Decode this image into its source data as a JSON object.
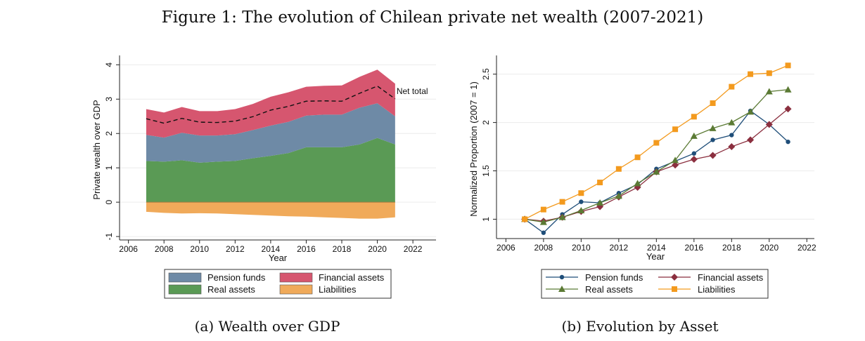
{
  "figure_title": "Figure 1: The evolution of Chilean private net wealth (2007-2021)",
  "chart_data": [
    {
      "type": "area",
      "caption": "(a) Wealth over GDP",
      "xlabel": "Year",
      "ylabel": "Private wealth over GDP",
      "xlim": [
        2005.5,
        2023.3
      ],
      "ylim": [
        -1.1,
        4.15
      ],
      "xticks": [
        "2006",
        "2008",
        "2010",
        "2012",
        "2014",
        "2016",
        "2018",
        "2020",
        "2022"
      ],
      "yticks": [
        "-1",
        "0",
        "1",
        "2",
        "3",
        "4"
      ],
      "grid": true,
      "x": [
        2007,
        2008,
        2009,
        2010,
        2011,
        2012,
        2013,
        2014,
        2015,
        2016,
        2017,
        2018,
        2019,
        2020,
        2021
      ],
      "series": [
        {
          "name": "Real assets",
          "color": "#5a9a55",
          "values": [
            1.2,
            1.18,
            1.22,
            1.15,
            1.18,
            1.2,
            1.28,
            1.35,
            1.43,
            1.6,
            1.6,
            1.6,
            1.68,
            1.87,
            1.68
          ]
        },
        {
          "name": "Pension funds",
          "color": "#6e8aa6",
          "values": [
            0.76,
            0.7,
            0.8,
            0.79,
            0.76,
            0.78,
            0.82,
            0.88,
            0.91,
            0.92,
            0.95,
            0.95,
            1.07,
            1.01,
            0.82
          ]
        },
        {
          "name": "Financial assets",
          "color": "#d6566f",
          "values": [
            0.75,
            0.73,
            0.75,
            0.71,
            0.71,
            0.73,
            0.76,
            0.84,
            0.86,
            0.84,
            0.84,
            0.85,
            0.9,
            0.98,
            0.95
          ]
        },
        {
          "name": "Liabilities",
          "color": "#f0aa5a",
          "values": [
            -0.28,
            -0.31,
            -0.33,
            -0.32,
            -0.33,
            -0.35,
            -0.37,
            -0.39,
            -0.41,
            -0.42,
            -0.44,
            -0.46,
            -0.48,
            -0.48,
            -0.44
          ]
        }
      ],
      "net_total": {
        "label": "Net total",
        "values": [
          2.43,
          2.3,
          2.44,
          2.33,
          2.32,
          2.36,
          2.49,
          2.68,
          2.79,
          2.94,
          2.95,
          2.94,
          3.17,
          3.38,
          3.01
        ]
      },
      "legend": {
        "placement": "bottom",
        "entries": [
          "Pension funds",
          "Financial assets",
          "Real assets",
          "Liabilities"
        ]
      }
    },
    {
      "type": "line",
      "caption": "(b) Evolution by Asset",
      "xlabel": "Year",
      "ylabel": "Normalized Proportion (2007 = 1)",
      "xlim": [
        2005.5,
        2022.4
      ],
      "ylim": [
        0.8,
        2.65
      ],
      "xticks": [
        "2006",
        "2008",
        "2010",
        "2012",
        "2014",
        "2016",
        "2018",
        "2020",
        "2022"
      ],
      "yticks": [
        "1",
        "1.5",
        "2",
        "2.5"
      ],
      "grid": true,
      "x": [
        2007,
        2008,
        2009,
        2010,
        2011,
        2012,
        2013,
        2014,
        2015,
        2016,
        2017,
        2018,
        2019,
        2020,
        2021
      ],
      "series": [
        {
          "name": "Pension funds",
          "color": "#1f4e79",
          "marker": "circle",
          "values": [
            1.0,
            0.86,
            1.05,
            1.18,
            1.17,
            1.27,
            1.36,
            1.52,
            1.6,
            1.68,
            1.82,
            1.87,
            2.12,
            1.98,
            1.8
          ]
        },
        {
          "name": "Financial assets",
          "color": "#8b2f3f",
          "marker": "diamond",
          "values": [
            1.0,
            0.98,
            1.02,
            1.08,
            1.13,
            1.23,
            1.33,
            1.49,
            1.56,
            1.62,
            1.66,
            1.75,
            1.82,
            1.98,
            2.14
          ]
        },
        {
          "name": "Real assets",
          "color": "#5b7a34",
          "marker": "triangle",
          "values": [
            1.0,
            0.97,
            1.02,
            1.09,
            1.17,
            1.24,
            1.37,
            1.49,
            1.61,
            1.86,
            1.94,
            2.0,
            2.11,
            2.32,
            2.34
          ]
        },
        {
          "name": "Liabilities",
          "color": "#f39a1e",
          "marker": "square",
          "values": [
            1.0,
            1.1,
            1.18,
            1.27,
            1.38,
            1.52,
            1.64,
            1.79,
            1.93,
            2.06,
            2.2,
            2.37,
            2.5,
            2.51,
            2.59
          ]
        }
      ],
      "legend": {
        "placement": "bottom",
        "entries": [
          "Pension funds",
          "Financial assets",
          "Real assets",
          "Liabilities"
        ]
      }
    }
  ]
}
